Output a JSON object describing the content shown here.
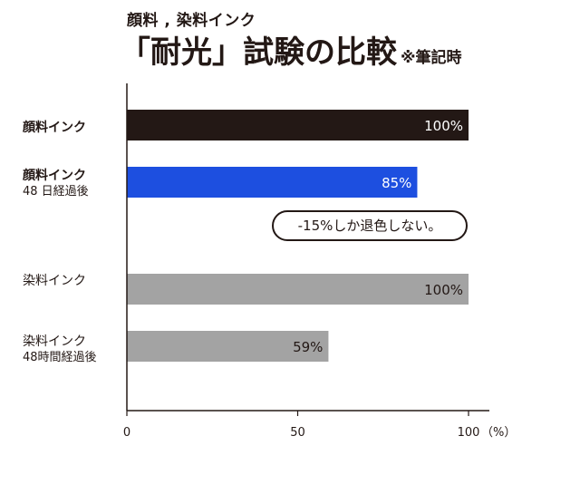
{
  "subtitle": "顔料 , 染料インク",
  "title": "「耐光」試験の比較",
  "title_note": "※筆記時",
  "callout": "-15%しか退色しない。",
  "chart_data": {
    "type": "bar",
    "orientation": "horizontal",
    "categories": [
      {
        "main": "顔料インク",
        "sub": "",
        "bold": true
      },
      {
        "main": "顔料インク",
        "sub": "48 日経過後",
        "bold": true
      },
      {
        "main": "染料インク",
        "sub": "",
        "bold": false
      },
      {
        "main": "染料インク",
        "sub": "48時間経過後",
        "bold": false
      }
    ],
    "values": [
      100,
      85,
      100,
      59
    ],
    "value_labels": [
      "100%",
      "85%",
      "100%",
      "59%"
    ],
    "colors": [
      "#231815",
      "#1d4fe0",
      "#a3a3a3",
      "#a3a3a3"
    ],
    "label_colors": [
      "#ffffff",
      "#ffffff",
      "#231815",
      "#231815"
    ],
    "xlim": [
      0,
      100
    ],
    "x_ticks": [
      "0",
      "50",
      "100"
    ],
    "x_unit": "（%）",
    "grid": false
  }
}
